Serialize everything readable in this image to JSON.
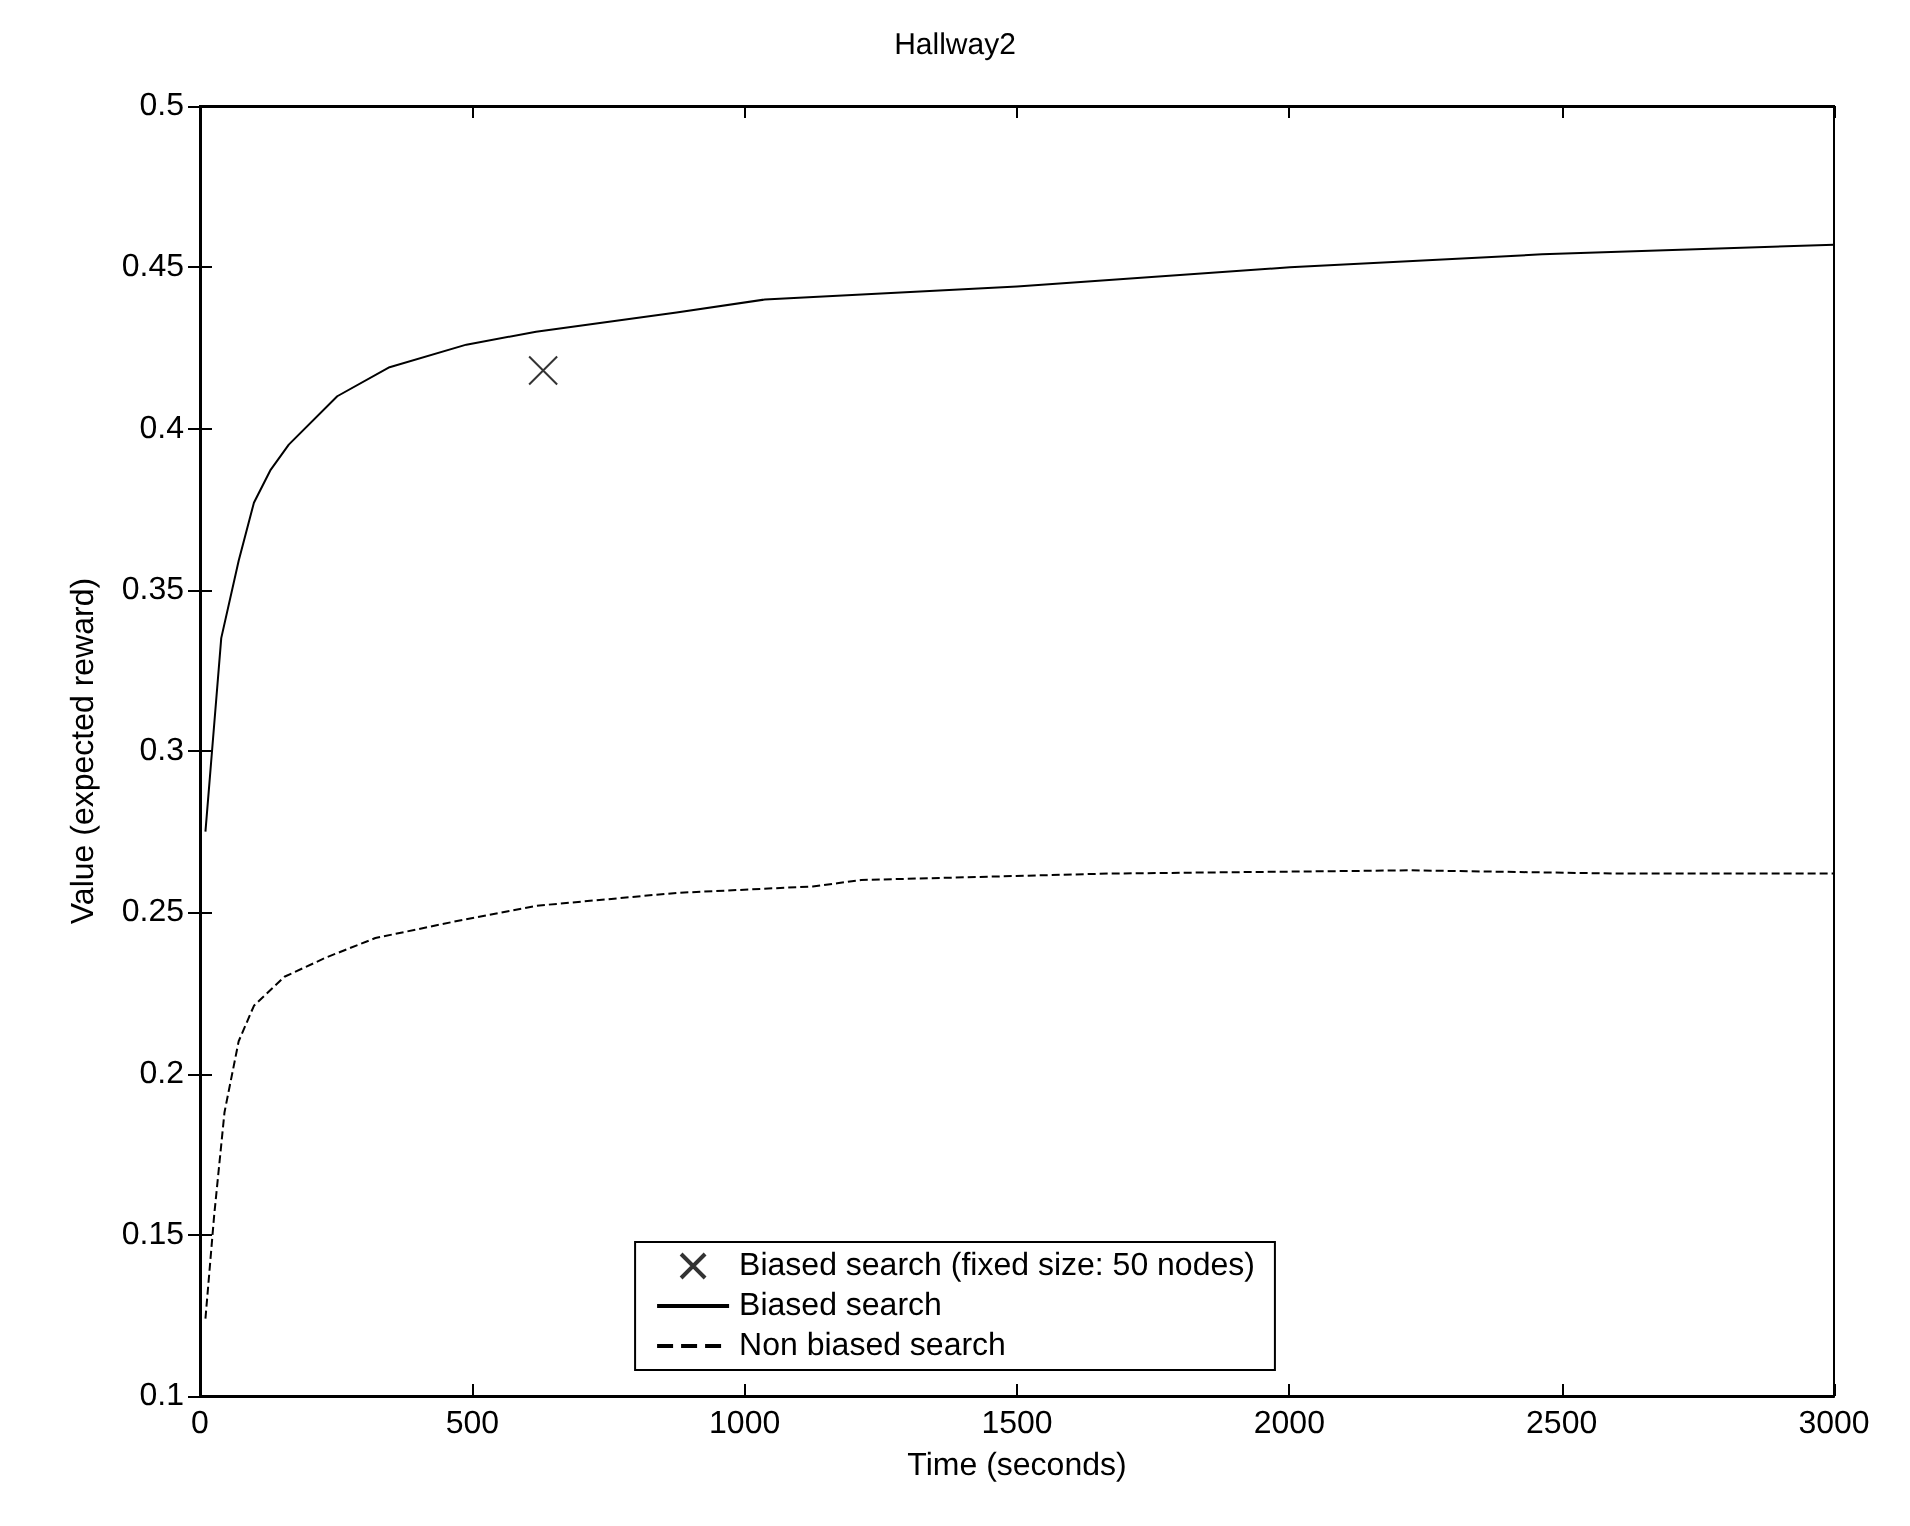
{
  "chart_data": {
    "type": "line",
    "title": "Hallway2",
    "xlabel": "Time (seconds)",
    "ylabel": "Value (expected reward)",
    "xlim": [
      0,
      3000
    ],
    "xticks": [
      0,
      500,
      1000,
      1500,
      2000,
      2500,
      3000
    ],
    "ylim": [
      0.1,
      0.5
    ],
    "yticks": [
      0.1,
      0.15,
      0.2,
      0.25,
      0.3,
      0.35,
      0.4,
      0.45,
      0.5
    ],
    "grid": false,
    "legend": "bottom",
    "series": [
      {
        "name": "Biased search (fixed size: 50 nodes)",
        "type": "scatter",
        "marker": "cross",
        "color": "#000000",
        "x": [
          630
        ],
        "values": [
          0.418
        ]
      },
      {
        "name": "Biased search",
        "line_style": "solid",
        "color": "#000000",
        "x": [
          10,
          39,
          71,
          99,
          129,
          163,
          252,
          348,
          489,
          617,
          875,
          1037,
          1500,
          2001,
          2464,
          3000
        ],
        "values": [
          0.275,
          0.335,
          0.359,
          0.377,
          0.387,
          0.395,
          0.41,
          0.419,
          0.426,
          0.43,
          0.436,
          0.44,
          0.444,
          0.45,
          0.454,
          0.457
        ]
      },
      {
        "name": "Non biased search",
        "line_style": "dashed",
        "color": "#000000",
        "x": [
          10,
          26,
          45,
          71,
          99,
          155,
          232,
          322,
          464,
          617,
          875,
          1125,
          1170,
          1214,
          1668,
          2224,
          2600,
          3000
        ],
        "values": [
          0.124,
          0.156,
          0.188,
          0.21,
          0.221,
          0.23,
          0.236,
          0.242,
          0.247,
          0.252,
          0.256,
          0.258,
          0.259,
          0.26,
          0.262,
          0.263,
          0.262,
          0.262
        ]
      }
    ]
  }
}
